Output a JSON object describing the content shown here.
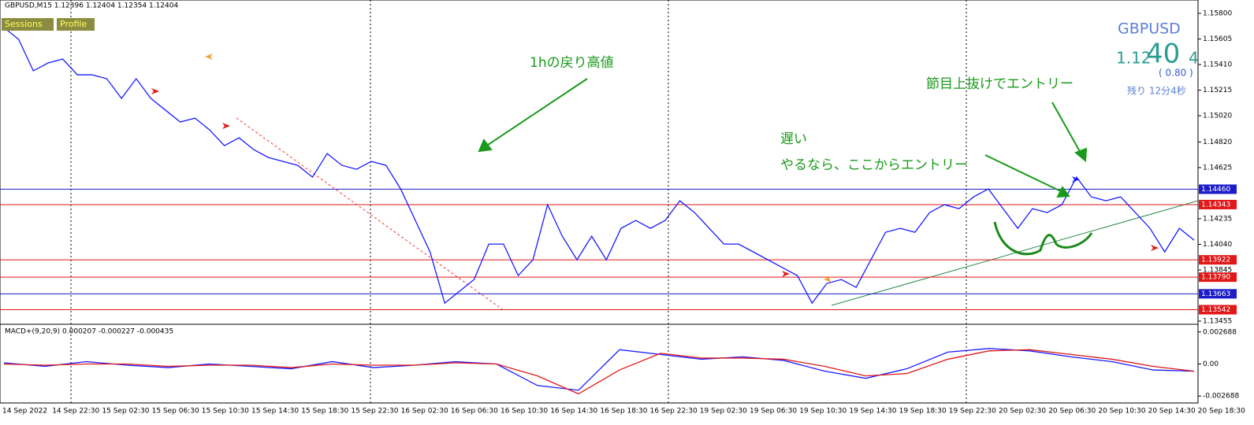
{
  "header": "GBPUSD,M15  1.12396 1.12404 1.12354 1.12404",
  "buttons": [
    "Sessions",
    "Profile"
  ],
  "quote": {
    "symbol": "GBPUSD",
    "price_parts": [
      "1.12",
      "40",
      "4"
    ],
    "change": "( 0.80 )",
    "remaining": "残り 12分4秒"
  },
  "annotations": [
    "1hの戻り高値",
    "節目上抜けでエントリー",
    "遅い",
    "やるなら、ここからエントリー"
  ],
  "chart_data": [
    {
      "type": "line",
      "color": "#1a1aff",
      "values": [
        1.15692,
        1.15602,
        1.15362,
        1.15422,
        1.15452,
        1.15332,
        1.15332,
        1.15302,
        1.15152,
        1.15302,
        1.15152,
        1.15062,
        1.14972,
        1.15002,
        1.14912,
        1.14792,
        1.14852,
        1.14762,
        1.14702,
        1.14672,
        1.14642,
        1.14552,
        1.14732,
        1.14642,
        1.14612,
        1.14672,
        1.14642,
        1.14462,
        1.14222,
        1.13982,
        1.13592,
        1.13682,
        1.13772,
        1.14042,
        1.14042,
        1.13802,
        1.13922,
        1.14342,
        1.14102,
        1.13922,
        1.14102,
        1.13922,
        1.14162,
        1.14222,
        1.14162,
        1.14222,
        1.14372,
        1.14282,
        1.14162,
        1.14042,
        1.14042,
        1.13982,
        1.13922,
        1.13862,
        1.13802,
        1.13592,
        1.13742,
        1.13772,
        1.13712,
        1.13922,
        1.14132,
        1.14162,
        1.14132,
        1.14282,
        1.14342,
        1.14312,
        1.14402,
        1.14462,
        1.14312,
        1.14162,
        1.14312,
        1.14282,
        1.14342,
        1.14552,
        1.14402,
        1.14372,
        1.14402,
        1.14282,
        1.14162,
        1.13982,
        1.14162,
        1.14072
      ],
      "ylim": [
        1.13437,
        1.1589
      ],
      "yticks": [
        {
          "value": 1.158,
          "label": "1.15800"
        },
        {
          "value": 1.15605,
          "label": "1.15605"
        },
        {
          "value": 1.1541,
          "label": "1.15410"
        },
        {
          "value": 1.15215,
          "label": "1.15215"
        },
        {
          "value": 1.1502,
          "label": "1.15020"
        },
        {
          "value": 1.1482,
          "label": "1.14820"
        },
        {
          "value": 1.14625,
          "label": "1.14625"
        },
        {
          "value": 1.14235,
          "label": "1.14235"
        },
        {
          "value": 1.1404,
          "label": "1.14040"
        },
        {
          "value": 1.13845,
          "label": "1.13845"
        },
        {
          "value": 1.13455,
          "label": "1.13455"
        }
      ],
      "levels": [
        {
          "value": 1.1446,
          "label": "1.14460",
          "color": "#1c1cc8"
        },
        {
          "value": 1.14343,
          "label": "1.14343",
          "color": "#e01818"
        },
        {
          "value": 1.13922,
          "label": "1.13922",
          "color": "#e01818"
        },
        {
          "value": 1.1379,
          "label": "1.13790",
          "color": "#e01818"
        },
        {
          "value": 1.13663,
          "label": "1.13663",
          "color": "#1c1cc8"
        },
        {
          "value": 1.13542,
          "label": "1.13542",
          "color": "#e01818"
        }
      ],
      "time_labels": [
        "14 Sep 2022",
        "14 Sep 22:30",
        "15 Sep 02:30",
        "15 Sep 06:30",
        "15 Sep 10:30",
        "15 Sep 14:30",
        "15 Sep 18:30",
        "15 Sep 22:30",
        "16 Sep 02:30",
        "16 Sep 06:30",
        "16 Sep 10:30",
        "16 Sep 14:30",
        "16 Sep 18:30",
        "16 Sep 22:30",
        "19 Sep 02:30",
        "19 Sep 06:30",
        "19 Sep 10:30",
        "19 Sep 14:30",
        "19 Sep 18:30",
        "19 Sep 22:30",
        "20 Sep 02:30",
        "20 Sep 06:30",
        "20 Sep 10:30",
        "20 Sep 14:30",
        "20 Sep 18:30"
      ]
    },
    {
      "type": "line",
      "title": "MACD+(9,20,9) 0.000207 -0.000227 -0.000435",
      "series": [
        {
          "color": "#1a1aff",
          "values": [
            0.0001,
            -0.0002,
            0.0002,
            -0.0001,
            -0.0003,
            0.0,
            -0.0002,
            -0.0004,
            0.0002,
            -0.0003,
            -0.0001,
            0.0002,
            0.0,
            -0.0018,
            -0.0022,
            0.0012,
            0.0008,
            0.0004,
            0.0006,
            0.0003,
            -0.0006,
            -0.0012,
            -0.0004,
            0.001,
            0.0013,
            0.0011,
            0.0006,
            0.0002,
            -0.0005,
            -0.0006
          ]
        },
        {
          "color": "#e01818",
          "values": [
            0.0,
            -0.0001,
            0.0,
            0.0,
            -0.0002,
            -0.0001,
            -0.0001,
            -0.0003,
            0.0,
            -0.0001,
            -0.0001,
            0.0001,
            0.0,
            -0.001,
            -0.0025,
            -0.0005,
            0.0009,
            0.0005,
            0.0005,
            0.0004,
            -0.0002,
            -0.001,
            -0.0008,
            0.0004,
            0.0011,
            0.0012,
            0.0008,
            0.0004,
            -0.0002,
            -0.0006
          ]
        }
      ],
      "ylim": [
        -0.0032,
        0.0032
      ],
      "yticks": [
        0.002688,
        {
          "value": 0,
          "label": "0.00"
        },
        -0.002688
      ]
    }
  ]
}
